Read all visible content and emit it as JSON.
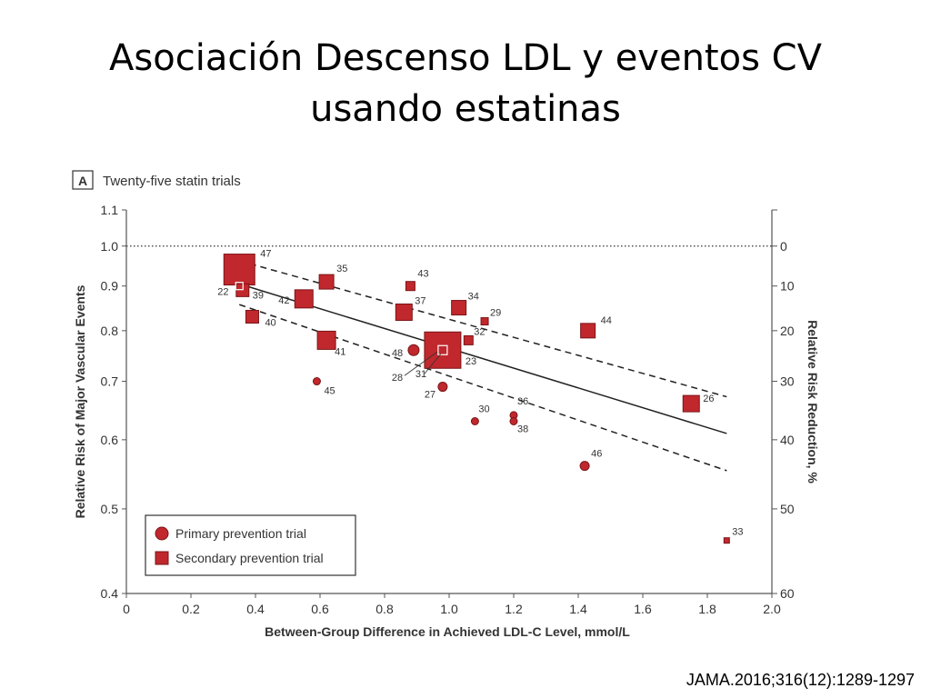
{
  "slide": {
    "title_line1": "Asociación Descenso LDL y eventos CV",
    "title_line2": "usando estatinas",
    "citation": "JAMA.2016;316(12):1289-1297"
  },
  "colors": {
    "marker": "#c0282d",
    "marker_edge": "#7a1417",
    "line": "#222222",
    "axis": "#555555"
  },
  "chart_data": {
    "type": "scatter",
    "panel_letter": "A",
    "panel_title": "Twenty-five statin trials",
    "xlabel": "Between-Group Difference in Achieved LDL-C Level, mmol/L",
    "ylabel": "Relative Risk of Major Vascular Events",
    "y2label": "Relative Risk Reduction, %",
    "xlim": [
      0,
      2.0
    ],
    "ylim": [
      0.4,
      1.1
    ],
    "yscale": "log",
    "xticks": [
      0,
      0.2,
      0.4,
      0.6,
      0.8,
      1.0,
      1.2,
      1.4,
      1.6,
      1.8,
      2.0
    ],
    "xtick_labels": [
      "0",
      "0.2",
      "0.4",
      "0.6",
      "0.8",
      "1.0",
      "1.2",
      "1.4",
      "1.6",
      "1.8",
      "2.0"
    ],
    "yticks": [
      0.4,
      0.5,
      0.6,
      0.7,
      0.8,
      0.9,
      1.0,
      1.1
    ],
    "ytick_labels": [
      "0.4",
      "0.5",
      "0.6",
      "0.7",
      "0.8",
      "0.9",
      "1.0",
      "1.1"
    ],
    "y2ticks": [
      0,
      10,
      20,
      30,
      40,
      50,
      60
    ],
    "y2tick_labels": [
      "0",
      "10",
      "20",
      "30",
      "40",
      "50",
      "60"
    ],
    "reference_line_y": 1.0,
    "regression": {
      "x": [
        0.35,
        1.86
      ],
      "y": [
        0.905,
        0.61
      ]
    },
    "ci_upper": {
      "x": [
        0.35,
        1.86
      ],
      "y": [
        0.962,
        0.672
      ]
    },
    "ci_lower": {
      "x": [
        0.35,
        1.86
      ],
      "y": [
        0.857,
        0.553
      ]
    },
    "legend": {
      "position": "bottom-left",
      "entries": [
        "Primary prevention trial",
        "Secondary prevention trial"
      ]
    },
    "series": [
      {
        "name": "Primary prevention trial",
        "marker": "circle",
        "points": [
          {
            "x": 0.89,
            "y": 0.76,
            "size": 6,
            "label": "48"
          },
          {
            "x": 0.59,
            "y": 0.7,
            "size": 4,
            "label": "45"
          },
          {
            "x": 0.98,
            "y": 0.69,
            "size": 5,
            "label": "27"
          },
          {
            "x": 1.08,
            "y": 0.63,
            "size": 4,
            "label": "30"
          },
          {
            "x": 1.2,
            "y": 0.64,
            "size": 4,
            "label": "36"
          },
          {
            "x": 1.2,
            "y": 0.63,
            "size": 4,
            "label": "38"
          },
          {
            "x": 1.42,
            "y": 0.56,
            "size": 5,
            "label": "46"
          }
        ]
      },
      {
        "name": "Secondary prevention trial",
        "marker": "square",
        "points": [
          {
            "x": 0.35,
            "y": 0.94,
            "size": 17,
            "label": "47"
          },
          {
            "x": 0.35,
            "y": 0.9,
            "size": 4,
            "label": "22",
            "open": true
          },
          {
            "x": 0.36,
            "y": 0.89,
            "size": 7,
            "label": "39"
          },
          {
            "x": 0.39,
            "y": 0.83,
            "size": 7,
            "label": "40"
          },
          {
            "x": 0.55,
            "y": 0.87,
            "size": 10,
            "label": "42"
          },
          {
            "x": 0.62,
            "y": 0.91,
            "size": 8,
            "label": "35"
          },
          {
            "x": 0.62,
            "y": 0.78,
            "size": 10,
            "label": "41"
          },
          {
            "x": 0.86,
            "y": 0.84,
            "size": 9,
            "label": "37"
          },
          {
            "x": 0.88,
            "y": 0.9,
            "size": 5,
            "label": "43"
          },
          {
            "x": 0.98,
            "y": 0.76,
            "size": 20,
            "label": "23"
          },
          {
            "x": 0.98,
            "y": 0.76,
            "size": 5,
            "label": "31",
            "open": true
          },
          {
            "x": 1.03,
            "y": 0.85,
            "size": 8,
            "label": "34"
          },
          {
            "x": 1.06,
            "y": 0.78,
            "size": 5,
            "label": "32"
          },
          {
            "x": 1.11,
            "y": 0.82,
            "size": 4,
            "label": "29"
          },
          {
            "x": 1.43,
            "y": 0.8,
            "size": 8,
            "label": "44"
          },
          {
            "x": 1.75,
            "y": 0.66,
            "size": 9,
            "label": "26"
          },
          {
            "x": 1.86,
            "y": 0.46,
            "size": 3,
            "label": "33"
          }
        ]
      }
    ],
    "extra_labels": [
      "28"
    ]
  }
}
